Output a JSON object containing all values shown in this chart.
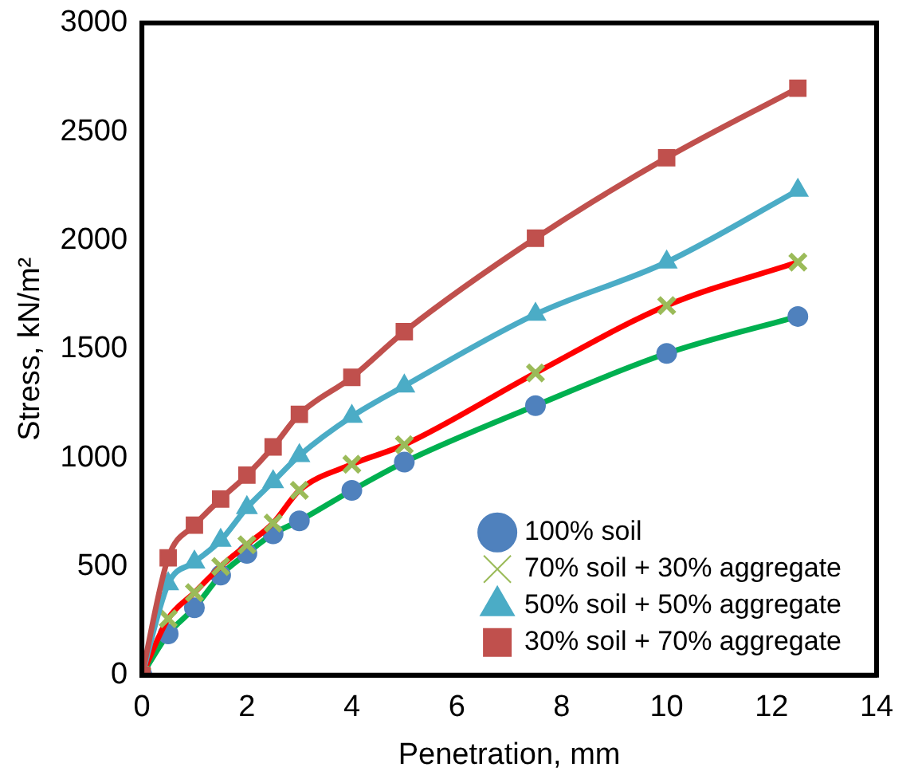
{
  "chart_data": {
    "type": "line",
    "xlabel": "Penetration, mm",
    "ylabel": "Stress, kN/m²",
    "x": [
      0,
      0.5,
      1,
      1.5,
      2,
      2.5,
      3,
      4,
      5,
      7.5,
      10,
      12.5
    ],
    "series": [
      {
        "name": "100% soil",
        "color": "#00b050",
        "marker": "circle",
        "values": [
          0,
          190,
          310,
          460,
          560,
          650,
          710,
          850,
          980,
          1240,
          1480,
          1650
        ]
      },
      {
        "name": "70% soil + 30% aggregate",
        "color": "#ff0000",
        "marker": "cross",
        "values": [
          0,
          260,
          380,
          500,
          600,
          700,
          850,
          970,
          1060,
          1390,
          1700,
          1900
        ]
      },
      {
        "name": "50% soil + 50% aggregate",
        "color": "#4bacc6",
        "marker": "triangle",
        "values": [
          0,
          420,
          520,
          620,
          770,
          890,
          1010,
          1190,
          1330,
          1660,
          1900,
          2230
        ]
      },
      {
        "name": "30% soil + 70% aggregate",
        "color": "#c0504d",
        "marker": "square",
        "values": [
          0,
          540,
          690,
          810,
          920,
          1050,
          1200,
          1370,
          1580,
          2010,
          2380,
          2700
        ]
      }
    ],
    "xlim": [
      0,
      14
    ],
    "xticks": [
      0,
      2,
      4,
      6,
      8,
      10,
      12,
      14
    ],
    "ylim": [
      0,
      3000
    ],
    "yticks": [
      0,
      500,
      1000,
      1500,
      2000,
      2500,
      3000
    ],
    "grid": false,
    "legend": "bottom right",
    "line_style": "solid"
  }
}
